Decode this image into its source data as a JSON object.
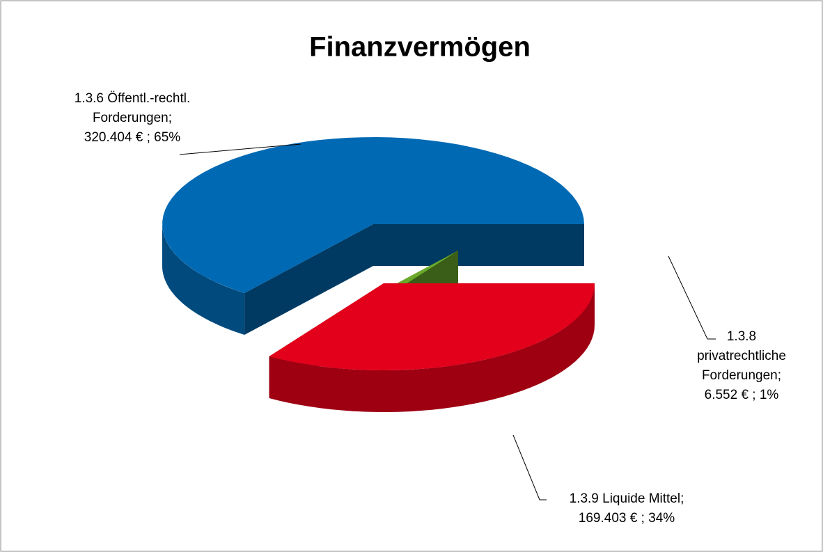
{
  "chart_data": {
    "type": "pie3d",
    "title": "Finanzvermögen",
    "categories": [
      "1.3.6 Öffentl.-rechtl. Forderungen;",
      "1.3.8 privatrechtliche Forderungen;",
      "1.3.9 Liquide Mittel;"
    ],
    "values": [
      320404,
      6552,
      169403
    ],
    "value_labels": [
      "320.404 € ; 65%",
      "6.552 € ; 1%",
      "169.403 € ; 34%"
    ],
    "colors": [
      "#0069b4",
      "#6aaa2a",
      "#e2001a"
    ]
  }
}
